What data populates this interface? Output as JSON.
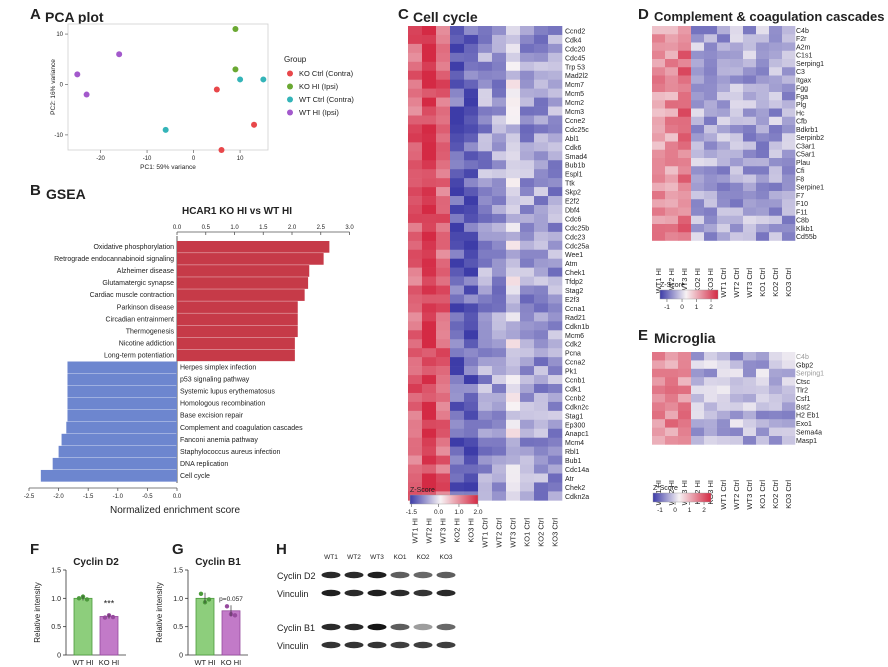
{
  "panels": {
    "A": {
      "letter": "A",
      "title": "PCA plot"
    },
    "B": {
      "letter": "B",
      "title": "GSEA"
    },
    "C": {
      "letter": "C",
      "title": "Cell cycle"
    },
    "D": {
      "letter": "D",
      "title": "Complement & coagulation cascades"
    },
    "E": {
      "letter": "E",
      "title": "Microglia"
    },
    "F": {
      "letter": "F",
      "title": "Cyclin D2"
    },
    "G": {
      "letter": "G",
      "title": "Cyclin B1"
    },
    "H": {
      "letter": "H"
    }
  },
  "colors": {
    "ko_ctrl": "#e8474a",
    "ko_hi": "#6aa832",
    "wt_ctrl": "#34b4b8",
    "wt_hi": "#a359cc",
    "gsea_pos": "#c63a48",
    "gsea_neg": "#6d86cf",
    "heat_low": "#3d3ca8",
    "heat_mid": "#f7f2f4",
    "heat_high": "#d42a44",
    "wt_bar": "#8dce7c",
    "ko_bar": "#c27ac8"
  },
  "heat_columns": [
    "WT1 HI",
    "WT2 HI",
    "WT3 HI",
    "KO2 HI",
    "KO3 HI",
    "WT1 Ctrl",
    "WT2 Ctrl",
    "WT3 Ctrl",
    "KO1 Ctrl",
    "KO2 Ctrl",
    "KO3 Ctrl"
  ],
  "chart_data": [
    {
      "id": "A",
      "type": "scatter",
      "title": "PCA plot",
      "xlabel": "PC1: 59% variance",
      "ylabel": "PC2: 16% variance",
      "xlim": [
        -27,
        16
      ],
      "ylim": [
        -13,
        12
      ],
      "xticks": [
        -20,
        -10,
        0,
        10
      ],
      "yticks": [
        -10,
        0,
        10
      ],
      "legend_title": "Group",
      "legend_position": "right",
      "series": [
        {
          "name": "KO Ctrl (Contra)",
          "color_key": "ko_ctrl",
          "points": [
            [
              5,
              -1
            ],
            [
              6,
              -13
            ],
            [
              13,
              -8
            ]
          ]
        },
        {
          "name": "KO HI (Ipsi)",
          "color_key": "ko_hi",
          "points": [
            [
              9,
              11
            ],
            [
              9,
              3
            ]
          ]
        },
        {
          "name": "WT Ctrl (Contra)",
          "color_key": "wt_ctrl",
          "points": [
            [
              -6,
              -9
            ],
            [
              10,
              1
            ],
            [
              15,
              1
            ]
          ]
        },
        {
          "name": "WT HI (Ipsi)",
          "color_key": "wt_hi",
          "points": [
            [
              -25,
              2
            ],
            [
              -23,
              -2
            ],
            [
              -16,
              6
            ]
          ]
        }
      ]
    },
    {
      "id": "B",
      "type": "bar",
      "orientation": "horizontal",
      "title": "HCAR1 KO HI vs WT HI",
      "xlabel": "Normalized enrichment score",
      "top_ticks": [
        "0.0",
        "0.5",
        "1.0",
        "1.5",
        "2.0",
        "2.5",
        "3.0"
      ],
      "bottom_ticks": [
        "-2.5",
        "-2.0",
        "-1.5",
        "-1.0",
        "-0.5",
        "0.0"
      ],
      "categories": [
        "Oxidative phosphorylation",
        "Retrograde endocannabinoid signaling",
        "Alzheimer disease",
        "Glutamatergic synapse",
        "Cardiac muscle contraction",
        "Parkinson disease",
        "Circadian entrainment",
        "Thermogenesis",
        "Nicotine addiction",
        "Long-term potentiation",
        "Herpes simplex infection",
        "p53 signaling pathway",
        "Systemic lupus erythematosus",
        "Homologous recombination",
        "Base excision repair",
        "Complement and coagulation cascades",
        "Fanconi anemia pathway",
        "Staphylococcus aureus infection",
        "DNA replication",
        "Cell cycle"
      ],
      "values": [
        2.65,
        2.55,
        2.3,
        2.28,
        2.22,
        2.1,
        2.1,
        2.1,
        2.05,
        2.05,
        -1.85,
        -1.85,
        -1.85,
        -1.85,
        -1.85,
        -1.87,
        -1.95,
        -2.0,
        -2.1,
        -2.3
      ]
    },
    {
      "id": "C",
      "type": "heatmap",
      "rows": [
        "Ccnd2",
        "Cdk4",
        "Cdc20",
        "Cdc45",
        "Trp 53",
        "Mad2l2",
        "Mcm7",
        "Mcm5",
        "Mcm2",
        "Mcm3",
        "Ccne2",
        "Cdc25c",
        "Abl1",
        "Cdk6",
        "Smad4",
        "Bub1b",
        "Espl1",
        "Ttk",
        "Skp2",
        "E2f2",
        "Dbf4",
        "Cdc6",
        "Cdc25b",
        "Cdc23",
        "Cdc25a",
        "Wee1",
        "Atm",
        "Chek1",
        "Tfdp2",
        "Stag2",
        "E2f3",
        "Ccna1",
        "Rad21",
        "Cdkn1b",
        "Mcm6",
        "Cdk2",
        "Pcna",
        "Ccna2",
        "Pk1",
        "Ccnb1",
        "Cdk1",
        "Ccnb2",
        "Cdkn2c",
        "Stag1",
        "Ep300",
        "Anapc1",
        "Mcm4",
        "Rbl1",
        "Bub1",
        "Cdc14a",
        "Atr",
        "Chek2",
        "Cdkn2a"
      ],
      "legend_title": "Z-Score",
      "legend_ticks": [
        "-1.5",
        "0.0",
        "1.0",
        "2.0"
      ]
    },
    {
      "id": "D",
      "type": "heatmap",
      "rows": [
        "C4b",
        "F2r",
        "A2m",
        "C1s1",
        "Serping1",
        "C3",
        "Itgax",
        "Fgg",
        "Fga",
        "Plg",
        "Hc",
        "Cfb",
        "Bdkrb1",
        "Serpinb2",
        "C3ar1",
        "C5ar1",
        "Plau",
        "Cfi",
        "F8",
        "Serpine1",
        "F7",
        "F10",
        "F11",
        "C8b",
        "Klkb1",
        "Cd55b"
      ],
      "legend_title": "Z-Score",
      "legend_ticks": [
        "-1",
        "0",
        "1",
        "2"
      ]
    },
    {
      "id": "E",
      "type": "heatmap",
      "rows": [
        "C4b",
        "Gbp2",
        "Serping1",
        "Ctsc",
        "Tlr2",
        "Csf1",
        "Bst2",
        "H2 Eb1",
        "Exo1",
        "Sema4a",
        "Masp1"
      ],
      "legend_title": "Z-Score",
      "legend_ticks": [
        "-1",
        "0",
        "1",
        "2"
      ]
    },
    {
      "id": "F",
      "type": "bar",
      "title": "Cyclin D2",
      "ylabel": "Relative intensity",
      "categories": [
        "WT HI",
        "KO HI"
      ],
      "values": [
        1.0,
        0.68
      ],
      "points": [
        [
          1.0,
          1.03,
          0.98
        ],
        [
          0.66,
          0.7,
          0.67
        ]
      ],
      "ylim": [
        0,
        1.5
      ],
      "yticks": [
        "0",
        "0.5",
        "1.0",
        "1.5"
      ],
      "annotation": "***"
    },
    {
      "id": "G",
      "type": "bar",
      "title": "Cyclin B1",
      "ylabel": "Relative intensity",
      "categories": [
        "WT HI",
        "KO HI"
      ],
      "values": [
        1.0,
        0.78
      ],
      "points": [
        [
          1.08,
          0.93,
          0.98
        ],
        [
          0.86,
          0.72,
          0.7
        ]
      ],
      "ylim": [
        0,
        1.5
      ],
      "yticks": [
        "0",
        "0.5",
        "1.0",
        "1.5"
      ],
      "annotation": "p=0.057"
    }
  ],
  "western": {
    "lanes": [
      "WT1",
      "WT2",
      "WT3",
      "KO1",
      "KO2",
      "KO3"
    ],
    "rows": [
      {
        "label": "Cyclin D2",
        "intensity": [
          0.85,
          0.85,
          0.9,
          0.6,
          0.55,
          0.6
        ]
      },
      {
        "label": "Vinculin",
        "intensity": [
          0.9,
          0.85,
          0.9,
          0.85,
          0.8,
          0.85
        ]
      },
      {
        "label": "Cyclin B1",
        "intensity": [
          0.85,
          0.85,
          0.95,
          0.6,
          0.3,
          0.55
        ]
      },
      {
        "label": "Vinculin",
        "intensity": [
          0.8,
          0.8,
          0.8,
          0.75,
          0.75,
          0.75
        ]
      }
    ]
  }
}
